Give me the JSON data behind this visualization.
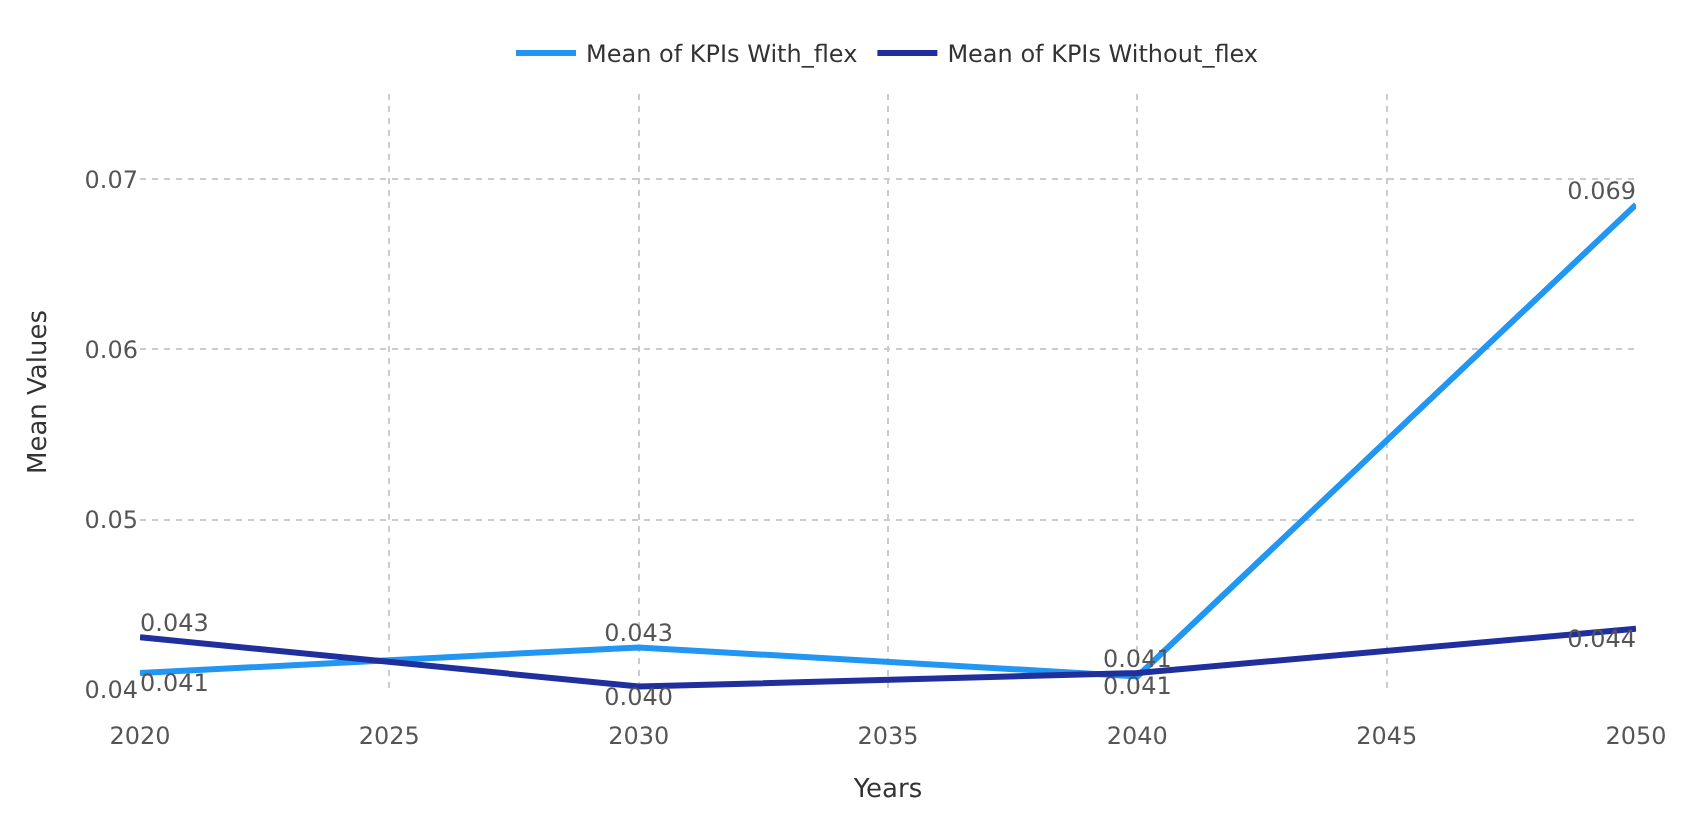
{
  "chart_data": {
    "type": "line",
    "xlabel": "Years",
    "ylabel": "Mean Values",
    "x": [
      2020,
      2030,
      2040,
      2050
    ],
    "series": [
      {
        "name": "Mean of KPIs With_flex",
        "color": "#2196f3",
        "values": [
          0.041,
          0.0425,
          0.0408,
          0.0685
        ],
        "value_labels": [
          "0.041",
          "0.043",
          "0.041",
          "0.069"
        ]
      },
      {
        "name": "Mean of KPIs Without_flex",
        "color": "#1f2f9e",
        "values": [
          0.0431,
          0.0402,
          0.041,
          0.0436
        ],
        "value_labels": [
          "0.043",
          "0.040",
          "0.041",
          "0.044"
        ]
      }
    ],
    "xlim": [
      2020,
      2050
    ],
    "xticks": [
      2020,
      2025,
      2030,
      2035,
      2040,
      2045,
      2050
    ],
    "ylim": [
      0.04,
      0.075
    ],
    "yticks": [
      {
        "value": 0.04,
        "label": "0.04"
      },
      {
        "value": 0.05,
        "label": "0.05"
      },
      {
        "value": 0.06,
        "label": "0.06"
      },
      {
        "value": 0.07,
        "label": "0.07"
      }
    ],
    "grid": true,
    "legend": "top",
    "marker": "none",
    "line_style": "solid"
  }
}
